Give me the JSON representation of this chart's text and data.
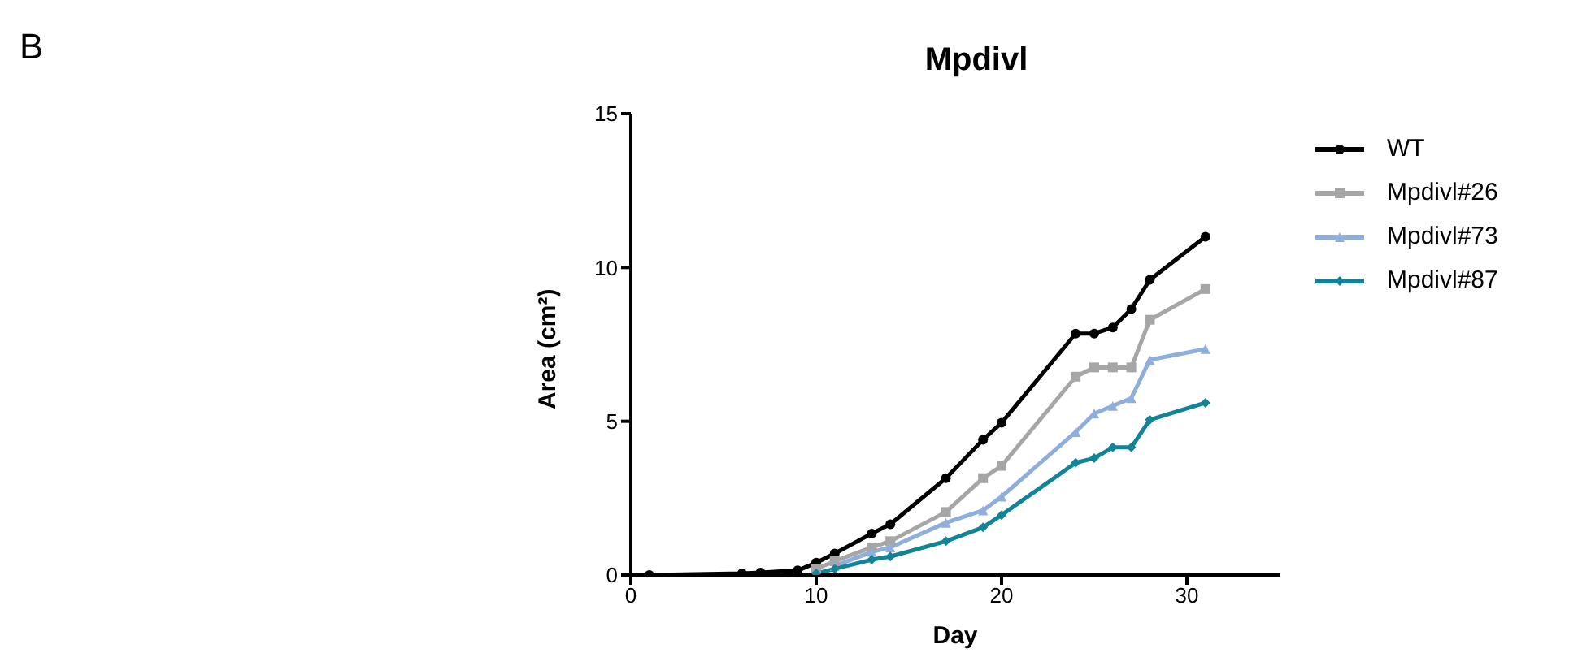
{
  "chart_data": {
    "type": "line",
    "title": "Mpdivl",
    "xlabel": "Day",
    "ylabel": "Area (cm²)",
    "annotations": [
      "B"
    ],
    "x": [
      1,
      6,
      7,
      9,
      10,
      11,
      13,
      14,
      17,
      19,
      20,
      24,
      25,
      26,
      27,
      28,
      31
    ],
    "xlim": [
      0,
      35
    ],
    "xticks": [
      0,
      10,
      20,
      30
    ],
    "ylim": [
      0,
      15
    ],
    "yticks": [
      0,
      5,
      10,
      15
    ],
    "grid": false,
    "legend": "right",
    "line_style": "solid",
    "series": [
      {
        "name": "WT",
        "color": "#000000",
        "marker": "circle",
        "values": [
          0,
          0.05,
          0.08,
          0.15,
          0.4,
          0.7,
          1.35,
          1.65,
          3.15,
          4.4,
          4.95,
          7.85,
          7.85,
          8.05,
          8.65,
          9.6,
          11.0
        ]
      },
      {
        "name": "Mpdivl#26",
        "color": "#a6a6a6",
        "marker": "square",
        "values": [
          null,
          null,
          null,
          null,
          0.2,
          0.45,
          0.9,
          1.1,
          2.05,
          3.15,
          3.55,
          6.45,
          6.75,
          6.75,
          6.75,
          8.3,
          9.3
        ]
      },
      {
        "name": "Mpdivl#73",
        "color": "#8eaedb",
        "marker": "triangle",
        "values": [
          null,
          null,
          null,
          null,
          null,
          0.3,
          0.75,
          0.9,
          1.7,
          2.1,
          2.55,
          4.65,
          5.25,
          5.5,
          5.75,
          7.0,
          7.35
        ]
      },
      {
        "name": "Mpdivl#87",
        "color": "#138496",
        "marker": "diamond",
        "values": [
          null,
          null,
          null,
          null,
          0.05,
          0.2,
          0.5,
          0.6,
          1.1,
          1.55,
          1.95,
          3.65,
          3.8,
          4.15,
          4.15,
          5.05,
          5.6
        ]
      }
    ]
  }
}
